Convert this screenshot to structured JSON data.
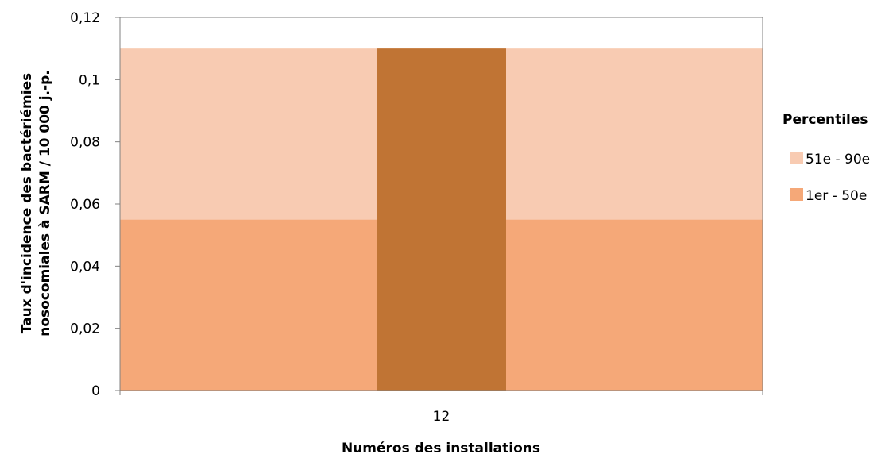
{
  "chart_data": {
    "type": "bar",
    "categories": [
      "12"
    ],
    "bands": [
      {
        "name": "1er - 50e",
        "from": 0,
        "to": 0.055,
        "color": "#F5A878"
      },
      {
        "name": "51e - 90e",
        "from": 0.055,
        "to": 0.11,
        "color": "#F8CBB2"
      }
    ],
    "series": [
      {
        "values": [
          0.11
        ],
        "color": "#C07434"
      }
    ],
    "xlabel": "Numéros des installations",
    "ylabel_lines": [
      "Taux d'incidence des bactériémies",
      "nosocomiales à SARM / 10 000 j.-p."
    ],
    "ylim": [
      0,
      0.12
    ],
    "yticks": [
      0,
      0.02,
      0.04,
      0.06,
      0.08,
      0.1,
      0.12
    ],
    "ytick_labels": [
      "0",
      "0,02",
      "0,04",
      "0,06",
      "0,08",
      "0,1",
      "0,12"
    ],
    "legend": {
      "title": "Percentiles",
      "position": "right",
      "entries": [
        {
          "label": "51e - 90e",
          "color": "#F8CBB2"
        },
        {
          "label": "1er - 50e",
          "color": "#F5A878"
        }
      ]
    },
    "axis_color": "#808080",
    "grid": false
  }
}
